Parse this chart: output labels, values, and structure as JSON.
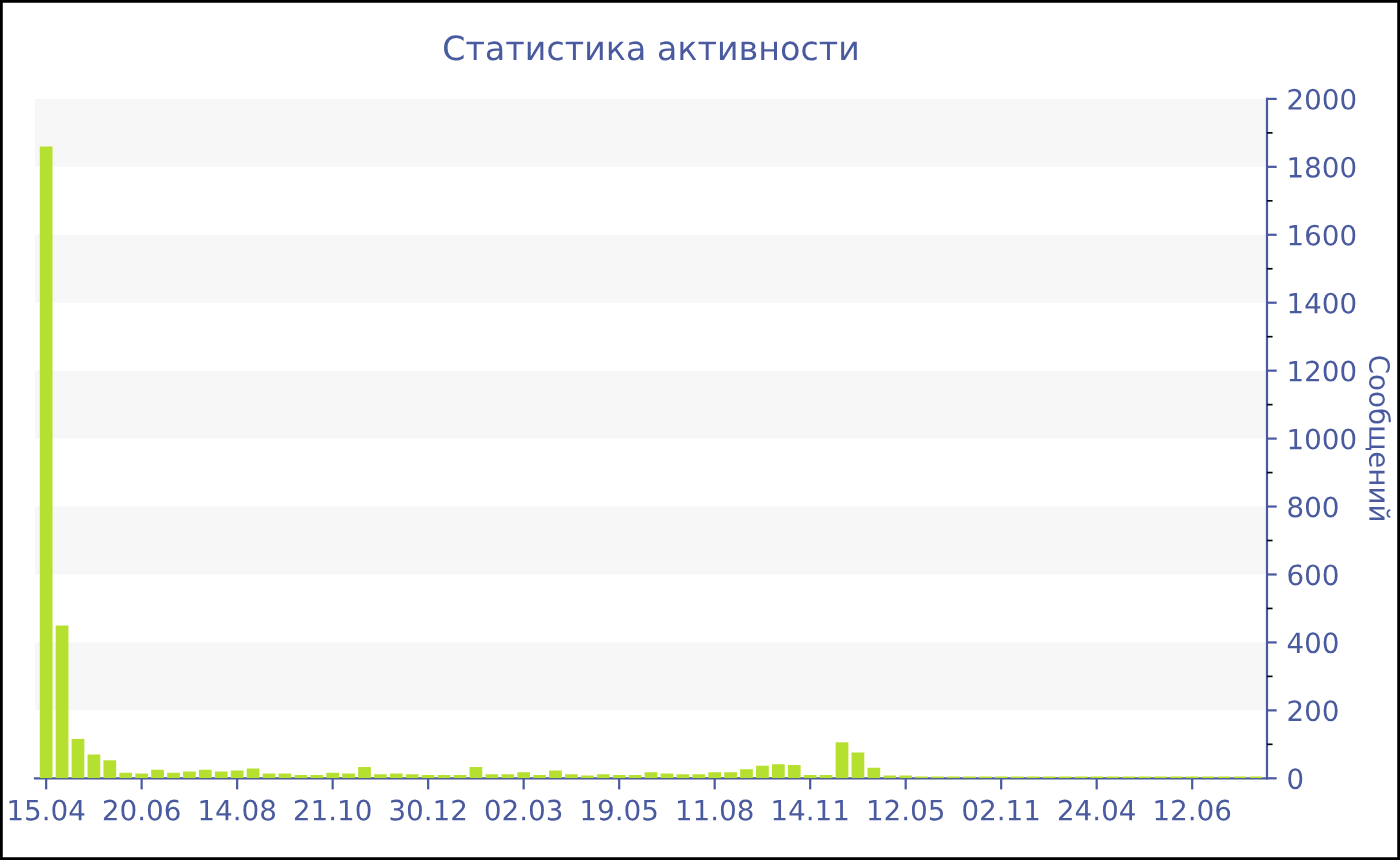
{
  "chart_data": {
    "type": "bar",
    "title": "Статистика активности",
    "ylabel": "Сообщений",
    "categories": [
      "15.04",
      null,
      null,
      null,
      null,
      null,
      "20.06",
      null,
      null,
      null,
      null,
      null,
      "14.08",
      null,
      null,
      null,
      null,
      null,
      "21.10",
      null,
      null,
      null,
      null,
      null,
      "30.12",
      null,
      null,
      null,
      null,
      null,
      "02.03",
      null,
      null,
      null,
      null,
      null,
      "19.05",
      null,
      null,
      null,
      null,
      null,
      "11.08",
      null,
      null,
      null,
      null,
      null,
      "14.11",
      null,
      null,
      null,
      null,
      null,
      "12.05",
      null,
      null,
      null,
      null,
      null,
      "02.11",
      null,
      null,
      null,
      null,
      null,
      "24.04",
      null,
      null,
      null,
      null,
      null,
      "12.06",
      null,
      null,
      null,
      null
    ],
    "values": [
      1860,
      450,
      116,
      70,
      53,
      16,
      14,
      25,
      16,
      20,
      25,
      20,
      23,
      29,
      14,
      14,
      10,
      10,
      16,
      14,
      33,
      12,
      14,
      12,
      10,
      10,
      10,
      33,
      12,
      12,
      18,
      10,
      23,
      12,
      8,
      12,
      10,
      10,
      18,
      14,
      12,
      12,
      18,
      18,
      27,
      37,
      41,
      39,
      10,
      10,
      106,
      76,
      31,
      8,
      8,
      5,
      5,
      5,
      5,
      5,
      5,
      5,
      5,
      5,
      5,
      5,
      5,
      5,
      5,
      5,
      5,
      5,
      5,
      5,
      5,
      5,
      5
    ],
    "color": "#b5e02f",
    "ylim": [
      0,
      2000
    ],
    "yticks": [
      0,
      200,
      400,
      600,
      800,
      1000,
      1200,
      1400,
      1600,
      1800,
      2000
    ],
    "bands": [
      {
        "axis": "y",
        "from": 200,
        "to": 400,
        "color": "#f7f7f7"
      },
      {
        "axis": "y",
        "from": 600,
        "to": 800,
        "color": "#f7f7f7"
      },
      {
        "axis": "y",
        "from": 1000,
        "to": 1200,
        "color": "#f7f7f7"
      },
      {
        "axis": "y",
        "from": 1400,
        "to": 1600,
        "color": "#f7f7f7"
      },
      {
        "axis": "y",
        "from": 1800,
        "to": 2000,
        "color": "#f7f7f7"
      }
    ]
  }
}
